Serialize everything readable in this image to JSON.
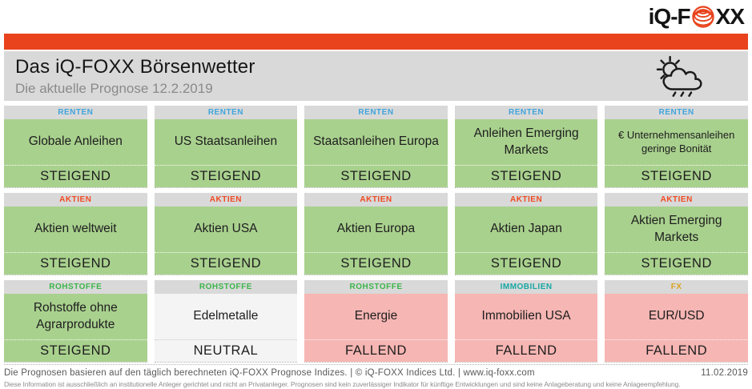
{
  "brand": {
    "logo_prefix": "iQ-F",
    "logo_suffix": "XX",
    "globe_icon": "striped-globe-icon"
  },
  "banner": {
    "title": "Das iQ-FOXX Börsenwetter",
    "subtitle": "Die aktuelle Prognose 12.2.2019",
    "weather_icon": "sun-cloud-rain-icon"
  },
  "colors": {
    "accent_red": "#E8431C",
    "band_gray": "#D9D9D9",
    "up_green": "#A9D18E",
    "down_pink": "#F6B6B3",
    "neutral_gray": "#F4F4F4",
    "cat_renten": "#41A4DC",
    "cat_aktien": "#F04B23",
    "cat_rohstoffe": "#3DB54A",
    "cat_immobilien": "#18A7A3",
    "cat_fx": "#DBA321"
  },
  "cards": [
    {
      "category": "RENTEN",
      "color": "cat_renten",
      "name": "Globale Anleihen",
      "status": "STEIGEND",
      "trend": "up"
    },
    {
      "category": "RENTEN",
      "color": "cat_renten",
      "name": "US Staatsanleihen",
      "status": "STEIGEND",
      "trend": "up"
    },
    {
      "category": "RENTEN",
      "color": "cat_renten",
      "name": "Staatsanleihen Europa",
      "status": "STEIGEND",
      "trend": "up"
    },
    {
      "category": "RENTEN",
      "color": "cat_renten",
      "name": "Anleihen Emerging Markets",
      "status": "STEIGEND",
      "trend": "up"
    },
    {
      "category": "RENTEN",
      "color": "cat_renten",
      "name": "€ Unternehmensanleihen geringe Bonität",
      "status": "STEIGEND",
      "trend": "up"
    },
    {
      "category": "AKTIEN",
      "color": "cat_aktien",
      "name": "Aktien weltweit",
      "status": "STEIGEND",
      "trend": "up"
    },
    {
      "category": "AKTIEN",
      "color": "cat_aktien",
      "name": "Aktien USA",
      "status": "STEIGEND",
      "trend": "up"
    },
    {
      "category": "AKTIEN",
      "color": "cat_aktien",
      "name": "Aktien Europa",
      "status": "STEIGEND",
      "trend": "up"
    },
    {
      "category": "AKTIEN",
      "color": "cat_aktien",
      "name": "Aktien Japan",
      "status": "STEIGEND",
      "trend": "up"
    },
    {
      "category": "AKTIEN",
      "color": "cat_aktien",
      "name": "Aktien Emerging Markets",
      "status": "STEIGEND",
      "trend": "up"
    },
    {
      "category": "ROHSTOFFE",
      "color": "cat_rohstoffe",
      "name": "Rohstoffe ohne Agrarprodukte",
      "status": "STEIGEND",
      "trend": "up"
    },
    {
      "category": "ROHSTOFFE",
      "color": "cat_rohstoffe",
      "name": "Edelmetalle",
      "status": "NEUTRAL",
      "trend": "neutral"
    },
    {
      "category": "ROHSTOFFE",
      "color": "cat_rohstoffe",
      "name": "Energie",
      "status": "FALLEND",
      "trend": "down"
    },
    {
      "category": "IMMOBILIEN",
      "color": "cat_immobilien",
      "name": "Immobilien USA",
      "status": "FALLEND",
      "trend": "down"
    },
    {
      "category": "FX",
      "color": "cat_fx",
      "name": "EUR/USD",
      "status": "FALLEND",
      "trend": "down"
    }
  ],
  "footer": {
    "info": "Die Prognosen basieren auf den täglich berechneten iQ-FOXX Prognose Indizes.  |  © iQ-FOXX Indices Ltd.  |  www.iq-foxx.com",
    "date": "11.02.2019",
    "disclaimer": "Diese Information ist ausschließlich an institutionelle Anleger gerichtet und nicht an Privatanleger. Prognosen sind kein zuverlässiger Indikator für künftige Entwicklungen und sind keine Anlageberatung und keine Anlageempfehlung."
  }
}
